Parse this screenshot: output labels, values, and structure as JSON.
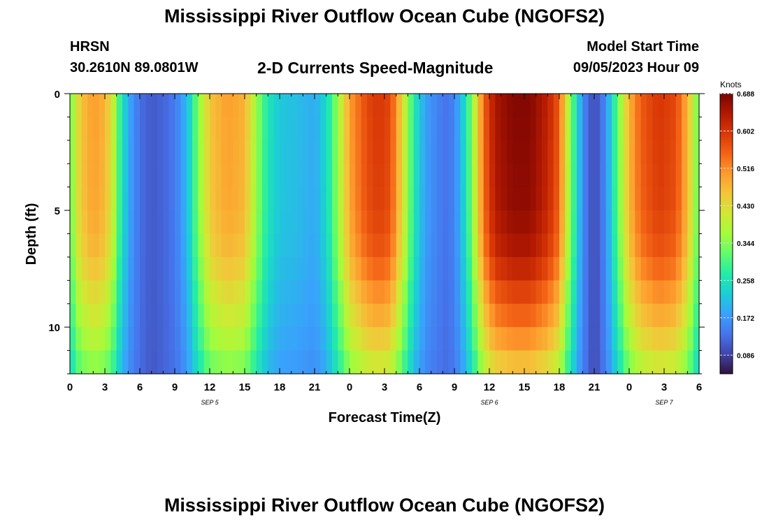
{
  "page": {
    "title": "Mississippi River Outflow Ocean Cube (NGOFS2)",
    "title_repeat": "Mississippi River Outflow Ocean Cube (NGOFS2)",
    "station": "HRSN",
    "location": "30.2610N  89.0801W",
    "subtitle": "2-D Currents Speed-Magnitude",
    "model_start_label": "Model Start Time",
    "model_start_value": "09/05/2023 Hour 09"
  },
  "chart_data": {
    "type": "heatmap",
    "title": "2-D Currents Speed-Magnitude",
    "xlabel": "Forecast Time(Z)",
    "ylabel": "Depth (ft)",
    "x_range_hours": [
      0,
      54
    ],
    "y_range_ft": [
      0,
      12
    ],
    "x_ticks": [
      {
        "hour": 0,
        "label": "0"
      },
      {
        "hour": 3,
        "label": "3"
      },
      {
        "hour": 6,
        "label": "6"
      },
      {
        "hour": 9,
        "label": "9"
      },
      {
        "hour": 12,
        "label": "12"
      },
      {
        "hour": 15,
        "label": "15"
      },
      {
        "hour": 18,
        "label": "18"
      },
      {
        "hour": 21,
        "label": "21"
      },
      {
        "hour": 24,
        "label": "0"
      },
      {
        "hour": 27,
        "label": "3"
      },
      {
        "hour": 30,
        "label": "6"
      },
      {
        "hour": 33,
        "label": "9"
      },
      {
        "hour": 36,
        "label": "12"
      },
      {
        "hour": 39,
        "label": "15"
      },
      {
        "hour": 42,
        "label": "18"
      },
      {
        "hour": 45,
        "label": "21"
      },
      {
        "hour": 48,
        "label": "0"
      },
      {
        "hour": 51,
        "label": "3"
      },
      {
        "hour": 54,
        "label": "6"
      }
    ],
    "date_labels": [
      {
        "hour": 12,
        "label": "SEP 5"
      },
      {
        "hour": 36,
        "label": "SEP 6"
      },
      {
        "hour": 51,
        "label": "SEP 7"
      }
    ],
    "y_ticks": [
      {
        "value": 0,
        "label": "0"
      },
      {
        "value": 5,
        "label": "5"
      },
      {
        "value": 10,
        "label": "10"
      }
    ],
    "colorbar": {
      "unit": "Knots",
      "min": 0.043,
      "max": 0.688,
      "ticks": [
        "0.688",
        "0.602",
        "0.516",
        "0.430",
        "0.344",
        "0.258",
        "0.172",
        "0.086"
      ],
      "tick_values": [
        0.688,
        0.602,
        0.516,
        0.43,
        0.344,
        0.258,
        0.172,
        0.086
      ],
      "stops": [
        "#30123b",
        "#4145ab",
        "#4675ed",
        "#39a2fc",
        "#1bcfd4",
        "#24eca6",
        "#61fc6c",
        "#a4fc3b",
        "#d1e834",
        "#f3c63a",
        "#fe9b2d",
        "#f36315",
        "#d93806",
        "#b11901",
        "#7a0402"
      ]
    },
    "time_profile_knots": [
      [
        0,
        0.3
      ],
      [
        0.5,
        0.42
      ],
      [
        1.5,
        0.49
      ],
      [
        2.5,
        0.5
      ],
      [
        3.5,
        0.44
      ],
      [
        4.2,
        0.3
      ],
      [
        5,
        0.19
      ],
      [
        6,
        0.13
      ],
      [
        7,
        0.11
      ],
      [
        8,
        0.12
      ],
      [
        9,
        0.14
      ],
      [
        10,
        0.2
      ],
      [
        11,
        0.34
      ],
      [
        12,
        0.46
      ],
      [
        13.5,
        0.5
      ],
      [
        15,
        0.48
      ],
      [
        16,
        0.36
      ],
      [
        17,
        0.26
      ],
      [
        18,
        0.22
      ],
      [
        19.5,
        0.21
      ],
      [
        21,
        0.19
      ],
      [
        22,
        0.24
      ],
      [
        23,
        0.36
      ],
      [
        24,
        0.5
      ],
      [
        25.5,
        0.58
      ],
      [
        26.5,
        0.6
      ],
      [
        27.5,
        0.58
      ],
      [
        28.5,
        0.44
      ],
      [
        29.5,
        0.27
      ],
      [
        30.5,
        0.18
      ],
      [
        31.5,
        0.15
      ],
      [
        32.5,
        0.13
      ],
      [
        33.5,
        0.19
      ],
      [
        34.5,
        0.34
      ],
      [
        35.5,
        0.55
      ],
      [
        36.5,
        0.65
      ],
      [
        38,
        0.68
      ],
      [
        39.5,
        0.68
      ],
      [
        41,
        0.63
      ],
      [
        42,
        0.56
      ],
      [
        42.5,
        0.44
      ],
      [
        43.2,
        0.3
      ],
      [
        44,
        0.16
      ],
      [
        45,
        0.09
      ],
      [
        46,
        0.16
      ],
      [
        47,
        0.32
      ],
      [
        48,
        0.48
      ],
      [
        49,
        0.56
      ],
      [
        50.5,
        0.6
      ],
      [
        52,
        0.58
      ],
      [
        53,
        0.48
      ],
      [
        53.6,
        0.38
      ],
      [
        54,
        0.3
      ]
    ],
    "depth_attenuation": [
      [
        0,
        1.0
      ],
      [
        5,
        0.98
      ],
      [
        7,
        0.93
      ],
      [
        8,
        0.86
      ],
      [
        9,
        0.8
      ],
      [
        10,
        0.74
      ],
      [
        11,
        0.66
      ],
      [
        12,
        0.58
      ]
    ],
    "depth_attenuation_floor_knots": 0.12,
    "grid": false
  }
}
